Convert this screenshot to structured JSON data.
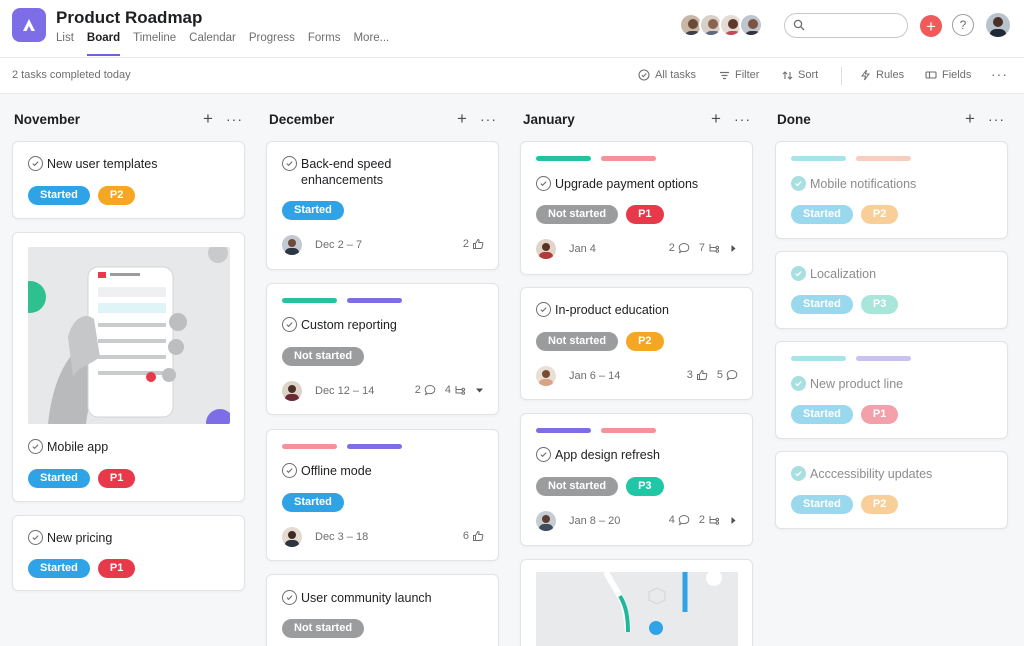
{
  "project": {
    "title": "Product Roadmap"
  },
  "nav": {
    "tabs": [
      "List",
      "Board",
      "Timeline",
      "Calendar",
      "Progress",
      "Forms",
      "More..."
    ],
    "active": "Board"
  },
  "search": {
    "placeholder": ""
  },
  "toolbar": {
    "status": "2 tasks completed today",
    "all_tasks": "All tasks",
    "filter": "Filter",
    "sort": "Sort",
    "rules": "Rules",
    "fields": "Fields"
  },
  "colors": {
    "accent": "#6e5ee0",
    "started": "#2fa3e6",
    "not_started": "#9a9c9e",
    "p1": "#e8394a",
    "p2": "#f5a623",
    "p3": "#20c7a7",
    "bar_teal": "#24c2a0",
    "bar_pink": "#f4919a",
    "bar_purple": "#7d6ee8"
  },
  "columns": [
    {
      "title": "November",
      "cards": [
        {
          "title": "New user templates",
          "tags": [
            "Started",
            "P2"
          ]
        },
        {
          "title": "Mobile app",
          "tags": [
            "Started",
            "P1"
          ],
          "image": "phone-app-screenshot"
        },
        {
          "title": "New pricing",
          "tags": [
            "Started",
            "P1"
          ]
        }
      ]
    },
    {
      "title": "December",
      "cards": [
        {
          "title_line1": "Back-end speed",
          "title_line2": "enhancements",
          "tags": [
            "Started"
          ],
          "date": "Dec 2 – 7",
          "likes": "2"
        },
        {
          "title": "Custom reporting",
          "tags": [
            "Not started"
          ],
          "date": "Dec 12 – 14",
          "comments": "2",
          "subtasks": "4"
        },
        {
          "title": "Offline mode",
          "tags": [
            "Started"
          ],
          "date": "Dec 3 – 18",
          "likes": "6"
        },
        {
          "title": "User community launch",
          "tags": [
            "Not started"
          ]
        }
      ]
    },
    {
      "title": "January",
      "cards": [
        {
          "title": "Upgrade payment options",
          "tags": [
            "Not started",
            "P1"
          ],
          "date": "Jan 4",
          "comments": "2",
          "subtasks": "7"
        },
        {
          "title": "In-product education",
          "tags": [
            "Not started",
            "P2"
          ],
          "date": "Jan 6 – 14",
          "likes": "3",
          "comments": "5"
        },
        {
          "title": "App design refresh",
          "tags": [
            "Not started",
            "P3"
          ],
          "date": "Jan 8 – 20",
          "comments": "4",
          "subtasks": "2"
        }
      ]
    },
    {
      "title": "Done",
      "cards": [
        {
          "title": "Mobile notifications",
          "tags": [
            "Started",
            "P2"
          ]
        },
        {
          "title": "Localization",
          "tags": [
            "Started",
            "P3"
          ]
        },
        {
          "title": "New product line",
          "tags": [
            "Started",
            "P1"
          ]
        },
        {
          "title": "Acccessibility updates",
          "tags": [
            "Started",
            "P2"
          ]
        }
      ]
    }
  ]
}
